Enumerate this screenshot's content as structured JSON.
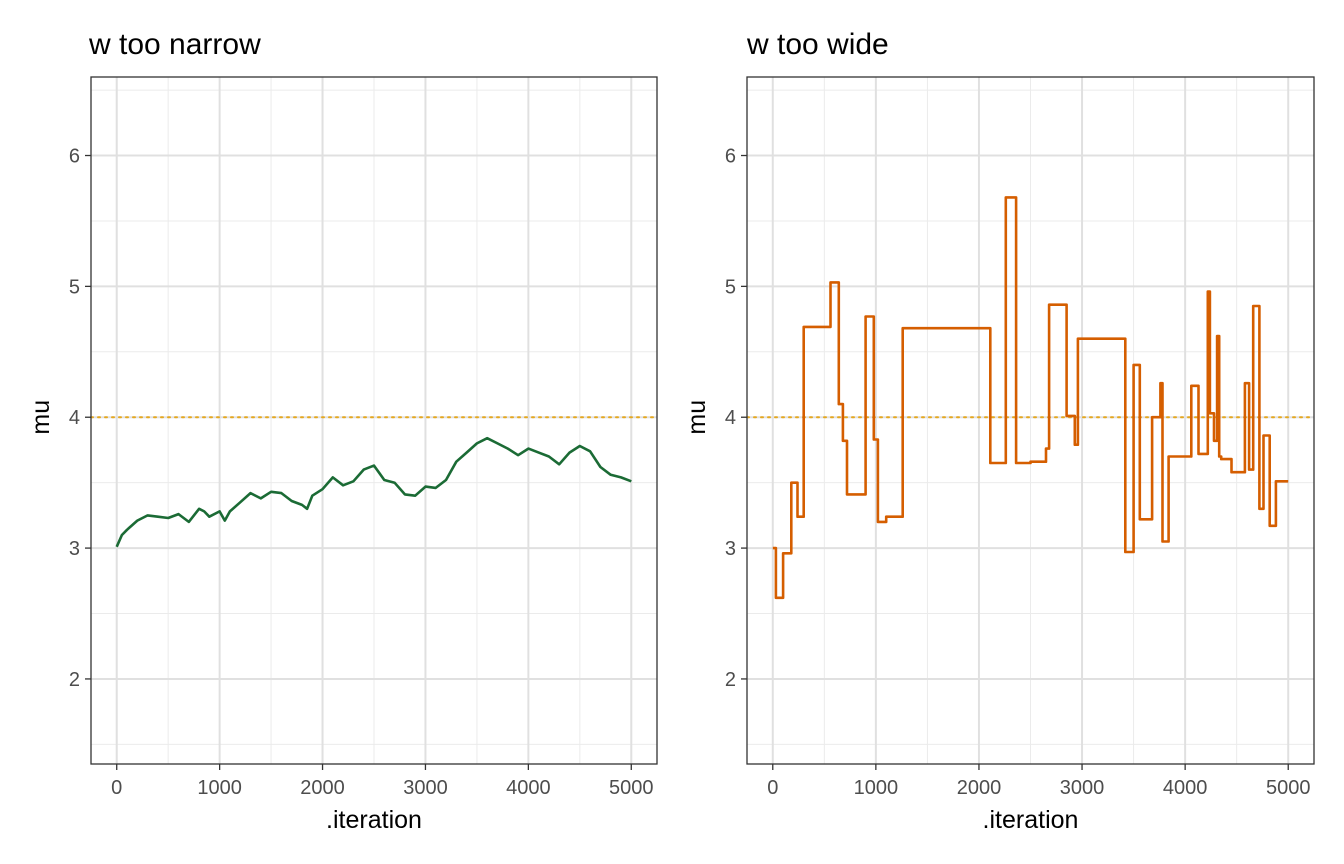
{
  "chart_data": [
    {
      "type": "line",
      "title": "w too narrow",
      "xlabel": ".iteration",
      "ylabel": "mu",
      "xlim": [
        -250,
        5250
      ],
      "ylim": [
        1.35,
        6.6
      ],
      "xticks": [
        "0",
        "1000",
        "2000",
        "3000",
        "4000",
        "5000"
      ],
      "yticks": [
        "2",
        "3",
        "4",
        "5",
        "6"
      ],
      "grid": true,
      "reference_line": {
        "y": 4,
        "style": "dotted",
        "color": "#E69F00"
      },
      "series": [
        {
          "color": "#1B6B35",
          "step": false,
          "x": [
            0,
            50,
            100,
            200,
            300,
            400,
            500,
            600,
            700,
            800,
            850,
            900,
            1000,
            1050,
            1100,
            1200,
            1300,
            1400,
            1500,
            1600,
            1700,
            1800,
            1850,
            1900,
            2000,
            2100,
            2200,
            2300,
            2400,
            2500,
            2600,
            2700,
            2800,
            2900,
            3000,
            3100,
            3200,
            3300,
            3400,
            3500,
            3600,
            3700,
            3800,
            3900,
            4000,
            4100,
            4200,
            4300,
            4400,
            4500,
            4600,
            4700,
            4800,
            4900,
            5000
          ],
          "y": [
            3.01,
            3.1,
            3.14,
            3.21,
            3.25,
            3.24,
            3.23,
            3.26,
            3.2,
            3.3,
            3.28,
            3.24,
            3.28,
            3.21,
            3.28,
            3.35,
            3.42,
            3.38,
            3.43,
            3.42,
            3.36,
            3.33,
            3.3,
            3.4,
            3.45,
            3.54,
            3.48,
            3.51,
            3.6,
            3.63,
            3.52,
            3.5,
            3.41,
            3.4,
            3.47,
            3.46,
            3.52,
            3.66,
            3.73,
            3.8,
            3.84,
            3.8,
            3.76,
            3.71,
            3.76,
            3.73,
            3.7,
            3.64,
            3.73,
            3.78,
            3.74,
            3.62,
            3.56,
            3.54,
            3.51
          ]
        }
      ]
    },
    {
      "type": "line",
      "title": "w too wide",
      "xlabel": ".iteration",
      "ylabel": "mu",
      "xlim": [
        -250,
        5250
      ],
      "ylim": [
        1.35,
        6.6
      ],
      "xticks": [
        "0",
        "1000",
        "2000",
        "3000",
        "4000",
        "5000"
      ],
      "yticks": [
        "2",
        "3",
        "4",
        "5",
        "6"
      ],
      "grid": true,
      "reference_line": {
        "y": 4,
        "style": "dotted",
        "color": "#E69F00"
      },
      "series": [
        {
          "color": "#D55E00",
          "step": true,
          "x": [
            0,
            30,
            100,
            180,
            240,
            300,
            560,
            640,
            680,
            720,
            900,
            980,
            1020,
            1100,
            1260,
            2110,
            2260,
            2360,
            2500,
            2650,
            2680,
            2850,
            2930,
            2960,
            3420,
            3500,
            3560,
            3680,
            3760,
            3780,
            3840,
            4060,
            4130,
            4220,
            4240,
            4280,
            4310,
            4330,
            4350,
            4450,
            4580,
            4620,
            4660,
            4720,
            4760,
            4820,
            4880,
            4960,
            5000
          ],
          "y": [
            3.0,
            2.62,
            2.96,
            3.5,
            3.24,
            4.69,
            5.03,
            4.1,
            3.82,
            3.41,
            4.77,
            3.83,
            3.2,
            3.24,
            4.68,
            3.65,
            5.68,
            3.65,
            3.66,
            3.76,
            4.86,
            4.01,
            3.79,
            4.6,
            2.97,
            4.4,
            3.22,
            4.0,
            4.26,
            3.05,
            3.7,
            4.24,
            3.72,
            4.96,
            4.03,
            3.82,
            4.62,
            3.7,
            3.68,
            3.58,
            4.26,
            3.6,
            4.85,
            3.3,
            3.86,
            3.17,
            3.51,
            3.51,
            3.51
          ]
        }
      ]
    }
  ]
}
